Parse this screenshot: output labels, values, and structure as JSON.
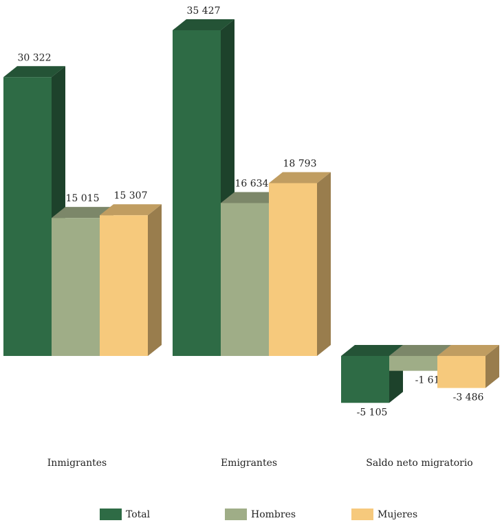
{
  "chart_data": {
    "type": "bar",
    "categories": [
      "Inmigrantes",
      "Emigrantes",
      "Saldo neto migratorio"
    ],
    "series": [
      {
        "name": "Total",
        "values": [
          30322,
          35427,
          -5105
        ],
        "labels": [
          "30 322",
          "35 427",
          "-5 105"
        ],
        "color": "#2e6b45"
      },
      {
        "name": "Hombres",
        "values": [
          15015,
          16634,
          -1619
        ],
        "labels": [
          "15 015",
          "16 634",
          "-1 619"
        ],
        "color": "#9fad87"
      },
      {
        "name": "Mujeres",
        "values": [
          15307,
          18793,
          -3486
        ],
        "labels": [
          "15 307",
          "18 793",
          "-3 486"
        ],
        "color": "#f6c97c"
      }
    ],
    "style": "3d-column",
    "legend_position": "bottom",
    "grid": false
  }
}
